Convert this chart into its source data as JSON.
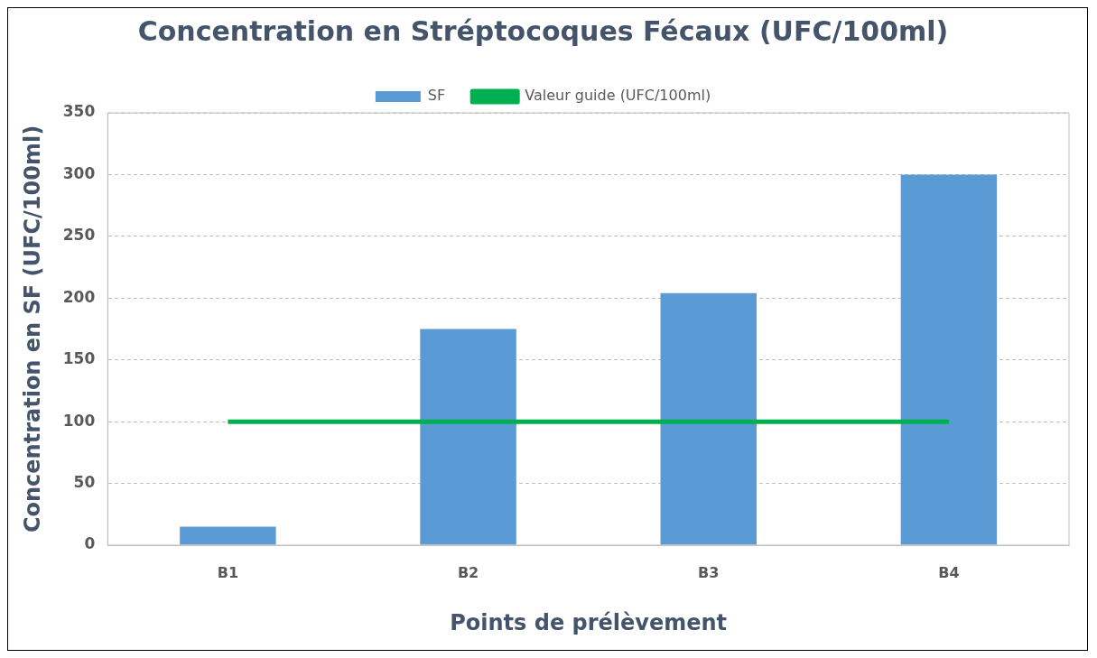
{
  "chart_data": {
    "type": "bar",
    "title": "Concentration en Stréptocoques Fécaux (UFC/100ml)",
    "xlabel": "Points de prélèvement",
    "ylabel": "Concentration en SF (UFC/100ml)",
    "categories": [
      "B1",
      "B2",
      "B3",
      "B4"
    ],
    "series": [
      {
        "name": "SF",
        "color": "#5b9bd5",
        "values": [
          15,
          175,
          204,
          300
        ]
      },
      {
        "name": "Valeur guide (UFC/100ml)",
        "type": "line",
        "color": "#00b050",
        "values": [
          100,
          100,
          100,
          100
        ]
      }
    ],
    "ylim": [
      0,
      350
    ],
    "yticks": [
      0,
      50,
      100,
      150,
      200,
      250,
      300,
      350
    ],
    "grid": "y",
    "legend": "top",
    "marker": "none",
    "line_style": "solid"
  }
}
